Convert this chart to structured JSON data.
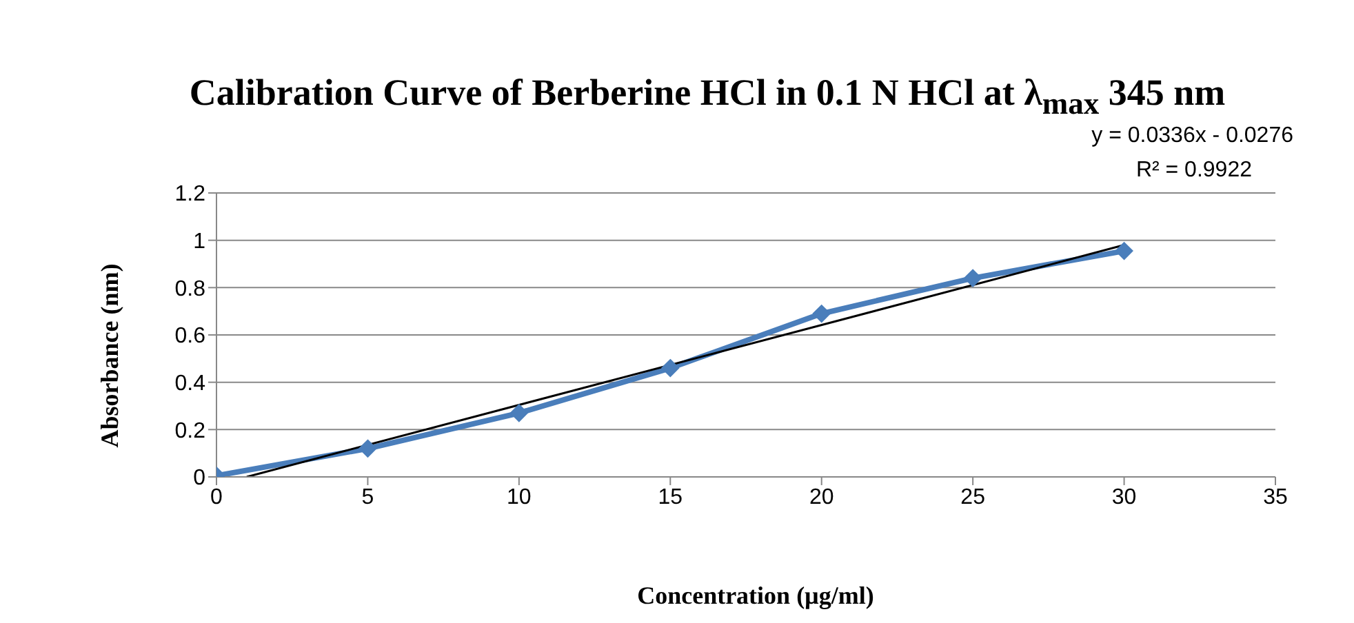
{
  "chart_data": {
    "type": "line",
    "title": "Calibration Curve of Berberine HCl in 0.1 N HCl at λ$_{max}$ 345 nm",
    "xlabel": "Concentration (µg/ml)",
    "ylabel": "Absorbance (nm)",
    "annotations": [
      "y = 0.0336x - 0.0276",
      "R² = 0.9922"
    ],
    "series": [
      {
        "color": "#4a7ebb",
        "marker": "diamond",
        "x": [
          0,
          5,
          10,
          15,
          20,
          25,
          30
        ],
        "values": [
          0.005,
          0.12,
          0.27,
          0.46,
          0.69,
          0.84,
          0.955
        ]
      },
      {
        "color": "#000000",
        "marker": "none",
        "x": [
          1,
          30
        ],
        "values": [
          0,
          0.98
        ]
      }
    ],
    "xlim": [
      0,
      35
    ],
    "xticks": [
      0,
      5,
      10,
      15,
      20,
      25,
      30,
      35
    ],
    "ylim": [
      0,
      1.2
    ],
    "yticks": [
      0,
      0.2,
      0.4,
      0.6,
      0.8,
      1,
      1.2
    ],
    "grid": "y"
  }
}
